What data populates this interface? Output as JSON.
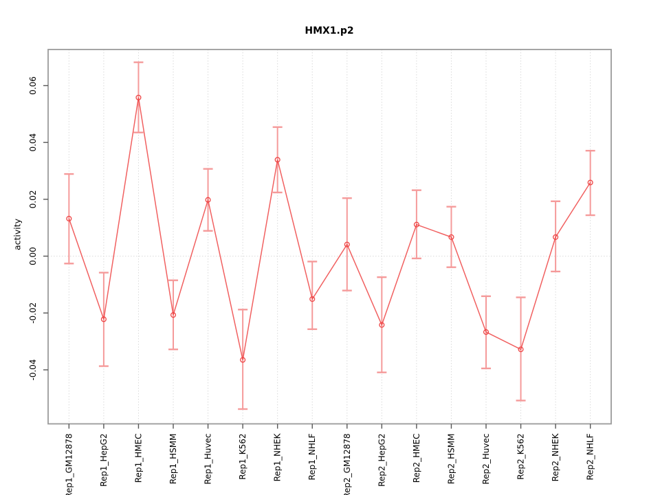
{
  "chart_data": {
    "type": "line",
    "title": "HMX1.p2",
    "xlabel": "",
    "ylabel": "activity",
    "legend": "none",
    "grid": {
      "vertical_dotted_per_category": true,
      "horizontal_dotted_zero_line": true
    },
    "ylim": [
      -0.059,
      0.0727
    ],
    "yticks": [
      -0.04,
      -0.02,
      0.0,
      0.02,
      0.04,
      0.06
    ],
    "categories": [
      "Rep1_GM12878",
      "Rep1_HepG2",
      "Rep1_HMEC",
      "Rep1_HSMM",
      "Rep1_Huvec",
      "Rep1_K562",
      "Rep1_NHEK",
      "Rep1_NHLF",
      "Rep2_GM12878",
      "Rep2_HepG2",
      "Rep2_HMEC",
      "Rep2_HSMM",
      "Rep2_Huvec",
      "Rep2_K562",
      "Rep2_NHEK",
      "Rep2_NHLF"
    ],
    "series": [
      {
        "name": "activity",
        "marker": "open-circle",
        "values": [
          0.0132,
          -0.0222,
          0.0558,
          -0.0207,
          0.0198,
          -0.0365,
          0.0339,
          -0.0151,
          0.0041,
          -0.0242,
          0.0111,
          0.0067,
          -0.0267,
          -0.0328,
          0.0067,
          0.0259
        ],
        "ci_lower": [
          -0.0026,
          -0.0387,
          0.0435,
          -0.0328,
          0.0089,
          -0.0538,
          0.0224,
          -0.0257,
          -0.0121,
          -0.0409,
          -0.0008,
          -0.0039,
          -0.0395,
          -0.0508,
          -0.0054,
          0.0144
        ],
        "ci_upper": [
          0.0289,
          -0.0058,
          0.0682,
          -0.0085,
          0.0307,
          -0.0188,
          0.0454,
          -0.0019,
          0.0204,
          -0.0074,
          0.0232,
          0.0174,
          -0.0141,
          -0.0145,
          0.0193,
          0.0371
        ]
      }
    ],
    "colors": {
      "line": "#ee4444",
      "marker": "#ee4444",
      "error_bar": "#f59a9a",
      "grid": "#d9d9d9",
      "box": "#9a9a9a",
      "tick": "#555555",
      "text": "#000000",
      "background": "#ffffff"
    }
  }
}
